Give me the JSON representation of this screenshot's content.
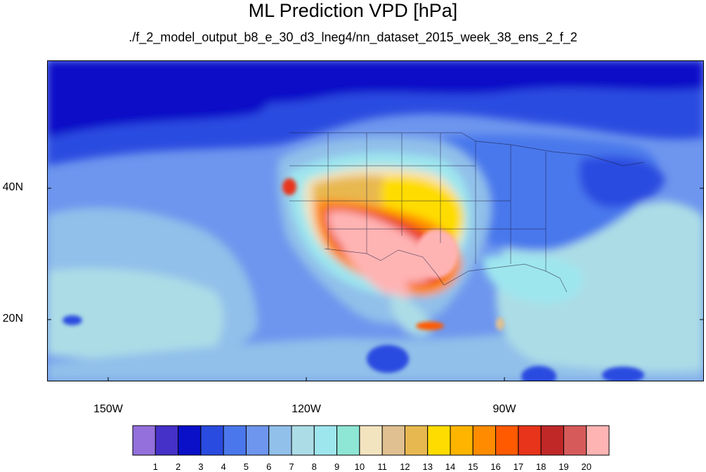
{
  "title": "ML Prediction VPD [hPa]",
  "subtitle": "./f_2_model_output_b8_e_30_d3_lneg4/nn_dataset_2015_week_38_ens_2_f_2",
  "map": {
    "projection": "cylindrical-equidistant",
    "lon_range": [
      -159.5,
      -60
    ],
    "lat_range": [
      10.5,
      59.5
    ]
  },
  "lat_ticks": [
    {
      "value": 40,
      "label": "40N"
    },
    {
      "value": 20,
      "label": "20N"
    }
  ],
  "lon_ticks": [
    {
      "value": -150,
      "label": "150W"
    },
    {
      "value": -120,
      "label": "120W"
    },
    {
      "value": -90,
      "label": "90W"
    }
  ],
  "legend": {
    "labels": [
      "1",
      "2",
      "3",
      "4",
      "5",
      "6",
      "7",
      "8",
      "9",
      "10",
      "11",
      "12",
      "13",
      "14",
      "15",
      "16",
      "17",
      "18",
      "19",
      "20"
    ],
    "colors": [
      "#9370db",
      "#4530c8",
      "#0a10c8",
      "#2a4be0",
      "#4a78ec",
      "#6e96ee",
      "#91c0ea",
      "#acdde6",
      "#9ee6ee",
      "#8ee6d4",
      "#f3e4c0",
      "#e0c090",
      "#e8b850",
      "#ffdc00",
      "#ffb400",
      "#ff8c00",
      "#ff5a00",
      "#e8341a",
      "#c02828",
      "#d65a5a",
      "#ffb4b4"
    ]
  }
}
